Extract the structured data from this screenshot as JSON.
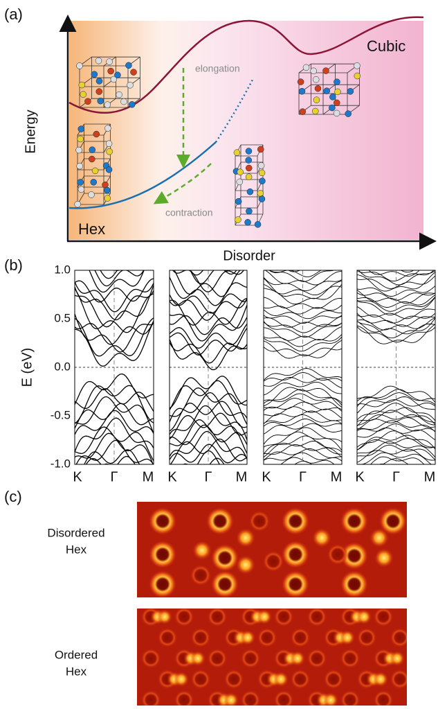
{
  "panel_a": {
    "label": "(a)",
    "y_axis": "Energy",
    "x_axis": "Disorder",
    "hex_label": "Hex",
    "cubic_label": "Cubic",
    "upper_annotation": "elongation",
    "lower_annotation": "contraction"
  },
  "panel_b": {
    "label": "(b)",
    "y_axis": "E (eV)",
    "yticks": [
      "1.0",
      "0.5",
      "0.0",
      "-0.5",
      "-1.0"
    ],
    "kpoints": [
      "K",
      "Γ",
      "M"
    ]
  },
  "panel_c": {
    "label": "(c)",
    "images": [
      {
        "line1": "Disordered",
        "line2": "Hex"
      },
      {
        "line1": "Ordered",
        "line2": "Hex"
      }
    ]
  }
}
